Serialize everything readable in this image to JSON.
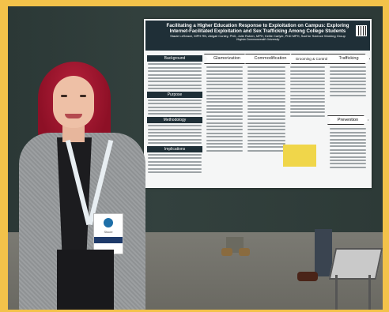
{
  "poster": {
    "title": "Facilitating a Higher Education Response to Exploitation on Campus: Exploring Internet-Facilitated Exploitation and Sex Trafficking Among College Students",
    "authors": "Stacie LeSeave, MPH RN, Abigail Conley, PhD, Julie Ruben, MPH, Kellie Carlyle, PhD MPH, Sad for Science Working Group",
    "institution": "Virginia Commonwealth University",
    "left_sections": [
      "Background",
      "Purpose",
      "Methodology",
      "Implications"
    ],
    "process_stages": [
      "Glamorization",
      "Commodification",
      "Grooming & Control",
      "Trafficking"
    ],
    "prevention_label": "Prevention"
  },
  "badge": {
    "name": "Stacie"
  }
}
